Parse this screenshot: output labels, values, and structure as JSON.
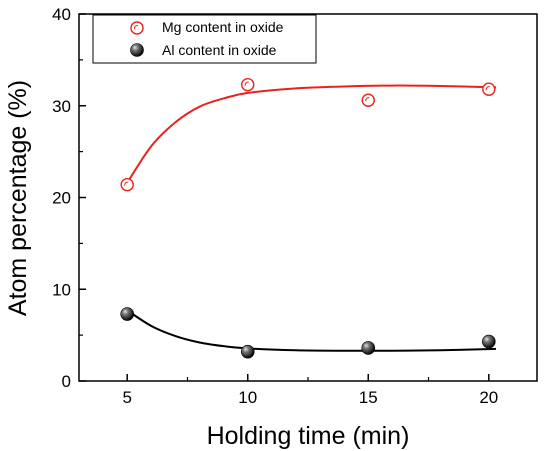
{
  "chart_data": {
    "type": "scatter",
    "x": [
      5,
      10,
      15,
      20
    ],
    "xlabel": "Holding time (min)",
    "ylabel": "Atom percentage (%)",
    "xlim": [
      3,
      22
    ],
    "ylim": [
      0,
      40
    ],
    "xticks": [
      "5",
      "10",
      "15",
      "20"
    ],
    "yticks": [
      "0",
      "10",
      "20",
      "30",
      "40"
    ],
    "grid": false,
    "legend_position": "top-left",
    "series": [
      {
        "name": "Mg content in oxide",
        "values": [
          21.4,
          32.3,
          30.6,
          31.8
        ],
        "marker": "open-circle",
        "color": "#e8231d",
        "fit": [
          [
            5,
            21.6
          ],
          [
            6,
            25.6
          ],
          [
            7,
            28.2
          ],
          [
            8,
            29.9
          ],
          [
            9,
            30.8
          ],
          [
            10,
            31.4
          ],
          [
            12,
            31.9
          ],
          [
            14,
            32.1
          ],
          [
            16,
            32.2
          ],
          [
            18,
            32.15
          ],
          [
            20.3,
            32.0
          ]
        ]
      },
      {
        "name": "Al content in oxide",
        "values": [
          7.3,
          3.2,
          3.6,
          4.3
        ],
        "marker": "filled-sphere",
        "color": "#000000",
        "fit": [
          [
            5,
            7.7
          ],
          [
            6,
            6.0
          ],
          [
            7,
            4.9
          ],
          [
            8,
            4.2
          ],
          [
            9,
            3.8
          ],
          [
            10,
            3.55
          ],
          [
            12,
            3.35
          ],
          [
            14,
            3.3
          ],
          [
            16,
            3.3
          ],
          [
            18,
            3.35
          ],
          [
            20.3,
            3.5
          ]
        ]
      }
    ]
  }
}
